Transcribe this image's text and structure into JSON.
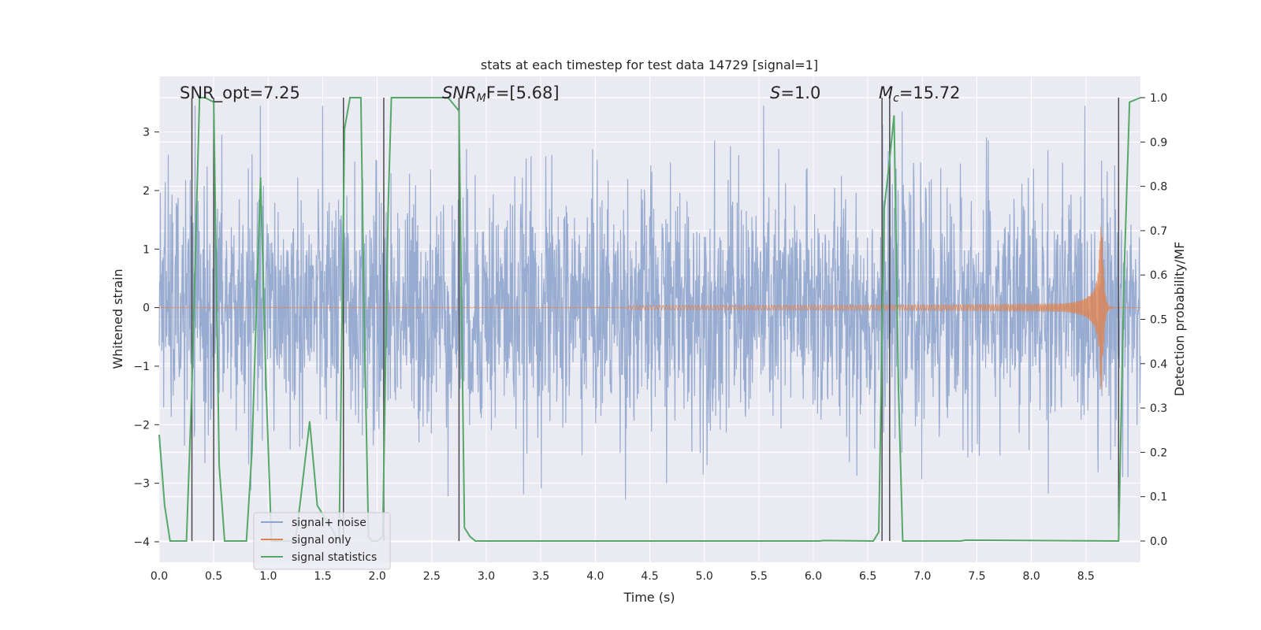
{
  "chart_data": {
    "type": "line",
    "title": "stats at each timestep for test data 14729 [signal=1]",
    "xlabel": "Time (s)",
    "ylabel_left": "Whitened strain",
    "ylabel_right": "Detection probability/MF",
    "xlim": [
      0.0,
      9.0
    ],
    "ylim_left": [
      -4.35,
      3.95
    ],
    "ylim_right": [
      -0.048,
      1.048
    ],
    "x_ticks": [
      "0.0",
      "0.5",
      "1.0",
      "1.5",
      "2.0",
      "2.5",
      "3.0",
      "3.5",
      "4.0",
      "4.5",
      "5.0",
      "5.5",
      "6.0",
      "6.5",
      "7.0",
      "7.5",
      "8.0",
      "8.5"
    ],
    "y_ticks_left": [
      "3",
      "2",
      "1",
      "0",
      "−1",
      "−2",
      "−3",
      "−4"
    ],
    "y_ticks_right": [
      "1.0",
      "0.9",
      "0.8",
      "0.7",
      "0.6",
      "0.5",
      "0.4",
      "0.3",
      "0.2",
      "0.1",
      "0.0"
    ],
    "grid": true,
    "legend_position": "lower-left",
    "annotations": {
      "snr_opt": "SNR_opt=7.25",
      "snr_mf_base": "SNR",
      "snr_mf_sub": "M",
      "snr_mf_rest": "F=[5.68]",
      "s_var": "S",
      "s_rest": "=1.0",
      "mc_var": "M",
      "mc_sub": "c",
      "mc_rest": "=15.72"
    },
    "series": [
      {
        "name": "signal+ noise",
        "color": "#8fa4cc",
        "description_values": "dense noise band approx ±2 (peaks to ±3.5) across 0–9 s"
      },
      {
        "name": "signal only",
        "color": "#dd8452",
        "chirp": {
          "t_merge": 8.65,
          "peak_amplitude": 1.4,
          "visible_from": 4.3
        }
      },
      {
        "name": "signal statistics",
        "color": "#55a868",
        "axis": "right",
        "x": [
          0.0,
          0.05,
          0.1,
          0.25,
          0.3,
          0.37,
          0.42,
          0.5,
          0.55,
          0.6,
          0.65,
          0.8,
          0.85,
          0.93,
          0.98,
          1.03,
          1.25,
          1.3,
          1.38,
          1.45,
          1.65,
          1.7,
          1.75,
          1.85,
          1.88,
          1.92,
          1.95,
          2.0,
          2.05,
          2.1,
          2.13,
          2.65,
          2.75,
          2.8,
          2.85,
          2.9,
          3.0,
          6.05,
          6.1,
          6.55,
          6.6,
          6.65,
          6.7,
          6.74,
          6.78,
          6.82,
          7.0,
          7.35,
          7.4,
          8.8,
          8.85,
          8.9,
          9.0
        ],
        "y": [
          0.24,
          0.08,
          0.0,
          0.0,
          0.35,
          1.0,
          1.0,
          0.99,
          0.17,
          0.0,
          0.0,
          0.0,
          0.2,
          0.82,
          0.35,
          0.0,
          0.0,
          0.1,
          0.27,
          0.08,
          0.0,
          0.93,
          1.0,
          1.0,
          0.5,
          0.01,
          0.0,
          0.0,
          0.01,
          0.75,
          1.0,
          1.0,
          0.97,
          0.03,
          0.01,
          0.0,
          0.0,
          0.0,
          0.001,
          0.0,
          0.02,
          0.75,
          0.86,
          0.96,
          0.35,
          0.0,
          0.0,
          0.0,
          0.002,
          0.0,
          0.6,
          0.99,
          1.0
        ]
      }
    ],
    "vertical_markers_x": [
      0.3,
      0.5,
      1.69,
      2.06,
      2.75,
      6.63,
      6.7,
      8.8
    ]
  }
}
